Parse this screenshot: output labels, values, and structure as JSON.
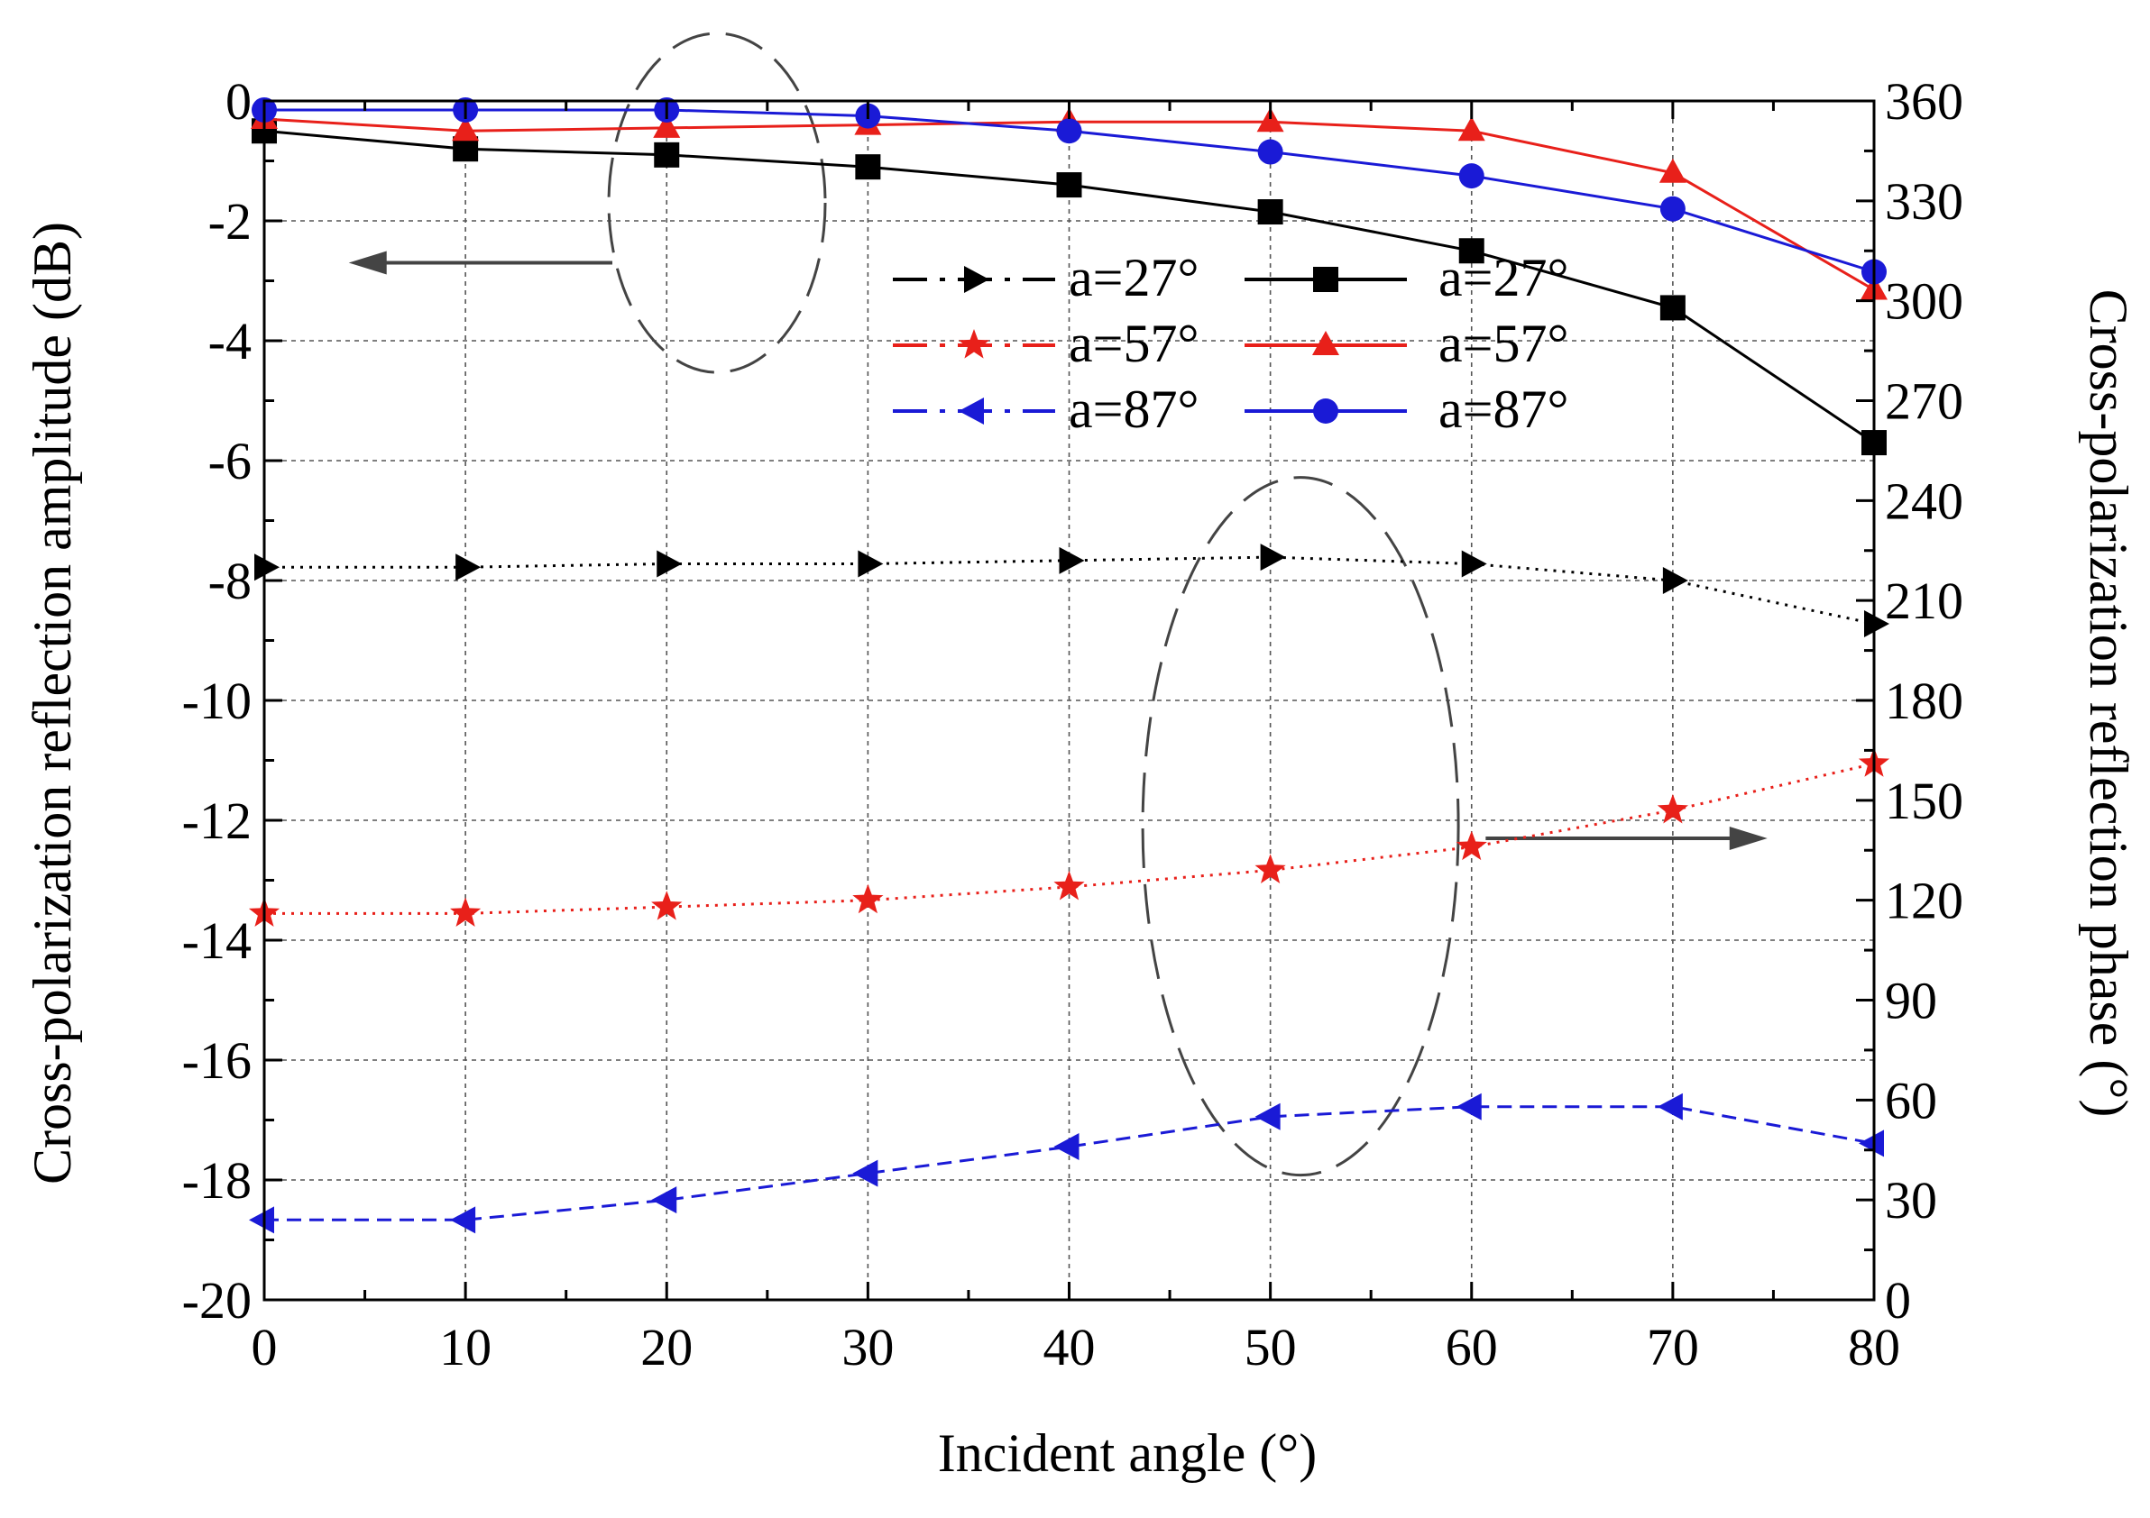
{
  "chart_data": {
    "type": "line",
    "xlabel": "Incident angle (°)",
    "ylabel_left": "Cross-polarization reflection amplitude (dB)",
    "ylabel_right": "Cross-polarization reflection phase (°)",
    "x_ticks": [
      0,
      10,
      20,
      30,
      40,
      50,
      60,
      70,
      80
    ],
    "y_left_ticks": [
      0,
      -2,
      -4,
      -6,
      -8,
      -10,
      -12,
      -14,
      -16,
      -18,
      -20
    ],
    "y_right_ticks": [
      360,
      330,
      300,
      270,
      240,
      210,
      180,
      150,
      120,
      90,
      60,
      30,
      0
    ],
    "xlim": [
      0,
      80
    ],
    "ylim_left": [
      -20,
      0
    ],
    "ylim_right": [
      0,
      360
    ],
    "grid": true,
    "x": [
      0,
      10,
      20,
      30,
      40,
      50,
      60,
      70,
      80
    ],
    "series": [
      {
        "name": "a=27°",
        "axis": "right",
        "quantity": "phase",
        "color": "#000000",
        "marker": "triangle-right",
        "line": "dotted",
        "values": [
          220,
          220,
          221,
          221,
          222,
          223,
          221,
          216,
          203
        ]
      },
      {
        "name": "a=57°",
        "axis": "right",
        "quantity": "phase",
        "color": "#e8201a",
        "marker": "star",
        "line": "dotted",
        "values": [
          116,
          116,
          118,
          120,
          124,
          129,
          136,
          147,
          161
        ]
      },
      {
        "name": "a=87°",
        "axis": "right",
        "quantity": "phase",
        "color": "#1a1ad6",
        "marker": "triangle-left",
        "line": "dashed",
        "values": [
          24,
          24,
          30,
          38,
          46,
          55,
          58,
          58,
          47
        ]
      },
      {
        "name": "a=27°",
        "axis": "left",
        "quantity": "amplitude",
        "color": "#000000",
        "marker": "square",
        "line": "solid",
        "values": [
          -0.5,
          -0.8,
          -0.9,
          -1.1,
          -1.4,
          -1.85,
          -2.5,
          -3.45,
          -5.7
        ]
      },
      {
        "name": "a=57°",
        "axis": "left",
        "quantity": "amplitude",
        "color": "#e8201a",
        "marker": "triangle-up",
        "line": "solid",
        "values": [
          -0.3,
          -0.5,
          -0.45,
          -0.4,
          -0.35,
          -0.35,
          -0.5,
          -1.2,
          -3.15
        ]
      },
      {
        "name": "a=87°",
        "axis": "left",
        "quantity": "amplitude",
        "color": "#1a1ad6",
        "marker": "circle",
        "line": "solid",
        "values": [
          -0.15,
          -0.15,
          -0.15,
          -0.25,
          -0.5,
          -0.85,
          -1.25,
          -1.8,
          -2.85
        ]
      }
    ],
    "legend": {
      "placement": "top-right",
      "labels": [
        "a=27°",
        "a=57°",
        "a=87°",
        "a=27°",
        "a=57°",
        "a=87°"
      ]
    }
  }
}
